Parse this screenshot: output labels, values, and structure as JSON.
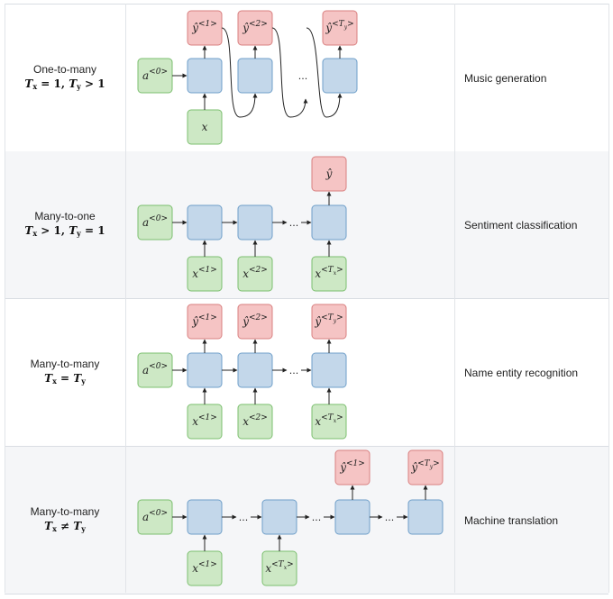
{
  "rows": [
    {
      "type_label": "One-to-many",
      "formula": {
        "a": "T",
        "a_sub": "x",
        "a_rel": " = 1, ",
        "b": "T",
        "b_sub": "y",
        "b_rel": " > 1"
      },
      "application": "Music generation",
      "shaded": false
    },
    {
      "type_label": "Many-to-one",
      "formula": {
        "a": "T",
        "a_sub": "x",
        "a_rel": " > 1, ",
        "b": "T",
        "b_sub": "y",
        "b_rel": " = 1"
      },
      "application": "Sentiment classification",
      "shaded": true
    },
    {
      "type_label": "Many-to-many",
      "formula": {
        "a": "T",
        "a_sub": "x",
        "a_rel": " = ",
        "b": "T",
        "b_sub": "y",
        "b_rel": ""
      },
      "application": "Name entity recognition",
      "shaded": false
    },
    {
      "type_label": "Many-to-many",
      "formula": {
        "a": "T",
        "a_sub": "x",
        "a_rel": " ≠ ",
        "b": "T",
        "b_sub": "y",
        "b_rel": ""
      },
      "application": "Machine translation",
      "shaded": true
    }
  ],
  "symbols": {
    "a0": {
      "base": "a",
      "sup": "<0>"
    },
    "x": {
      "base": "x",
      "sup": ""
    },
    "y1": {
      "base": "ŷ",
      "sup": "<1>"
    },
    "y2": {
      "base": "ŷ",
      "sup": "<2>"
    },
    "yTy": {
      "base": "ŷ",
      "sup": "<T",
      "sub": "y",
      "tail": ">"
    },
    "yhat": {
      "base": "ŷ",
      "sup": ""
    },
    "x1": {
      "base": "x",
      "sup": "<1>"
    },
    "x2": {
      "base": "x",
      "sup": "<2>"
    },
    "xTx": {
      "base": "x",
      "sup": "<T",
      "sub": "x",
      "tail": ">"
    },
    "ellipsis": "..."
  },
  "colors": {
    "input_fill": "#cde8c5",
    "input_stroke": "#7cbf6f",
    "hidden_fill": "#c3d7ea",
    "hidden_stroke": "#6f9fc9",
    "output_fill": "#f5c4c4",
    "output_stroke": "#d98080"
  }
}
